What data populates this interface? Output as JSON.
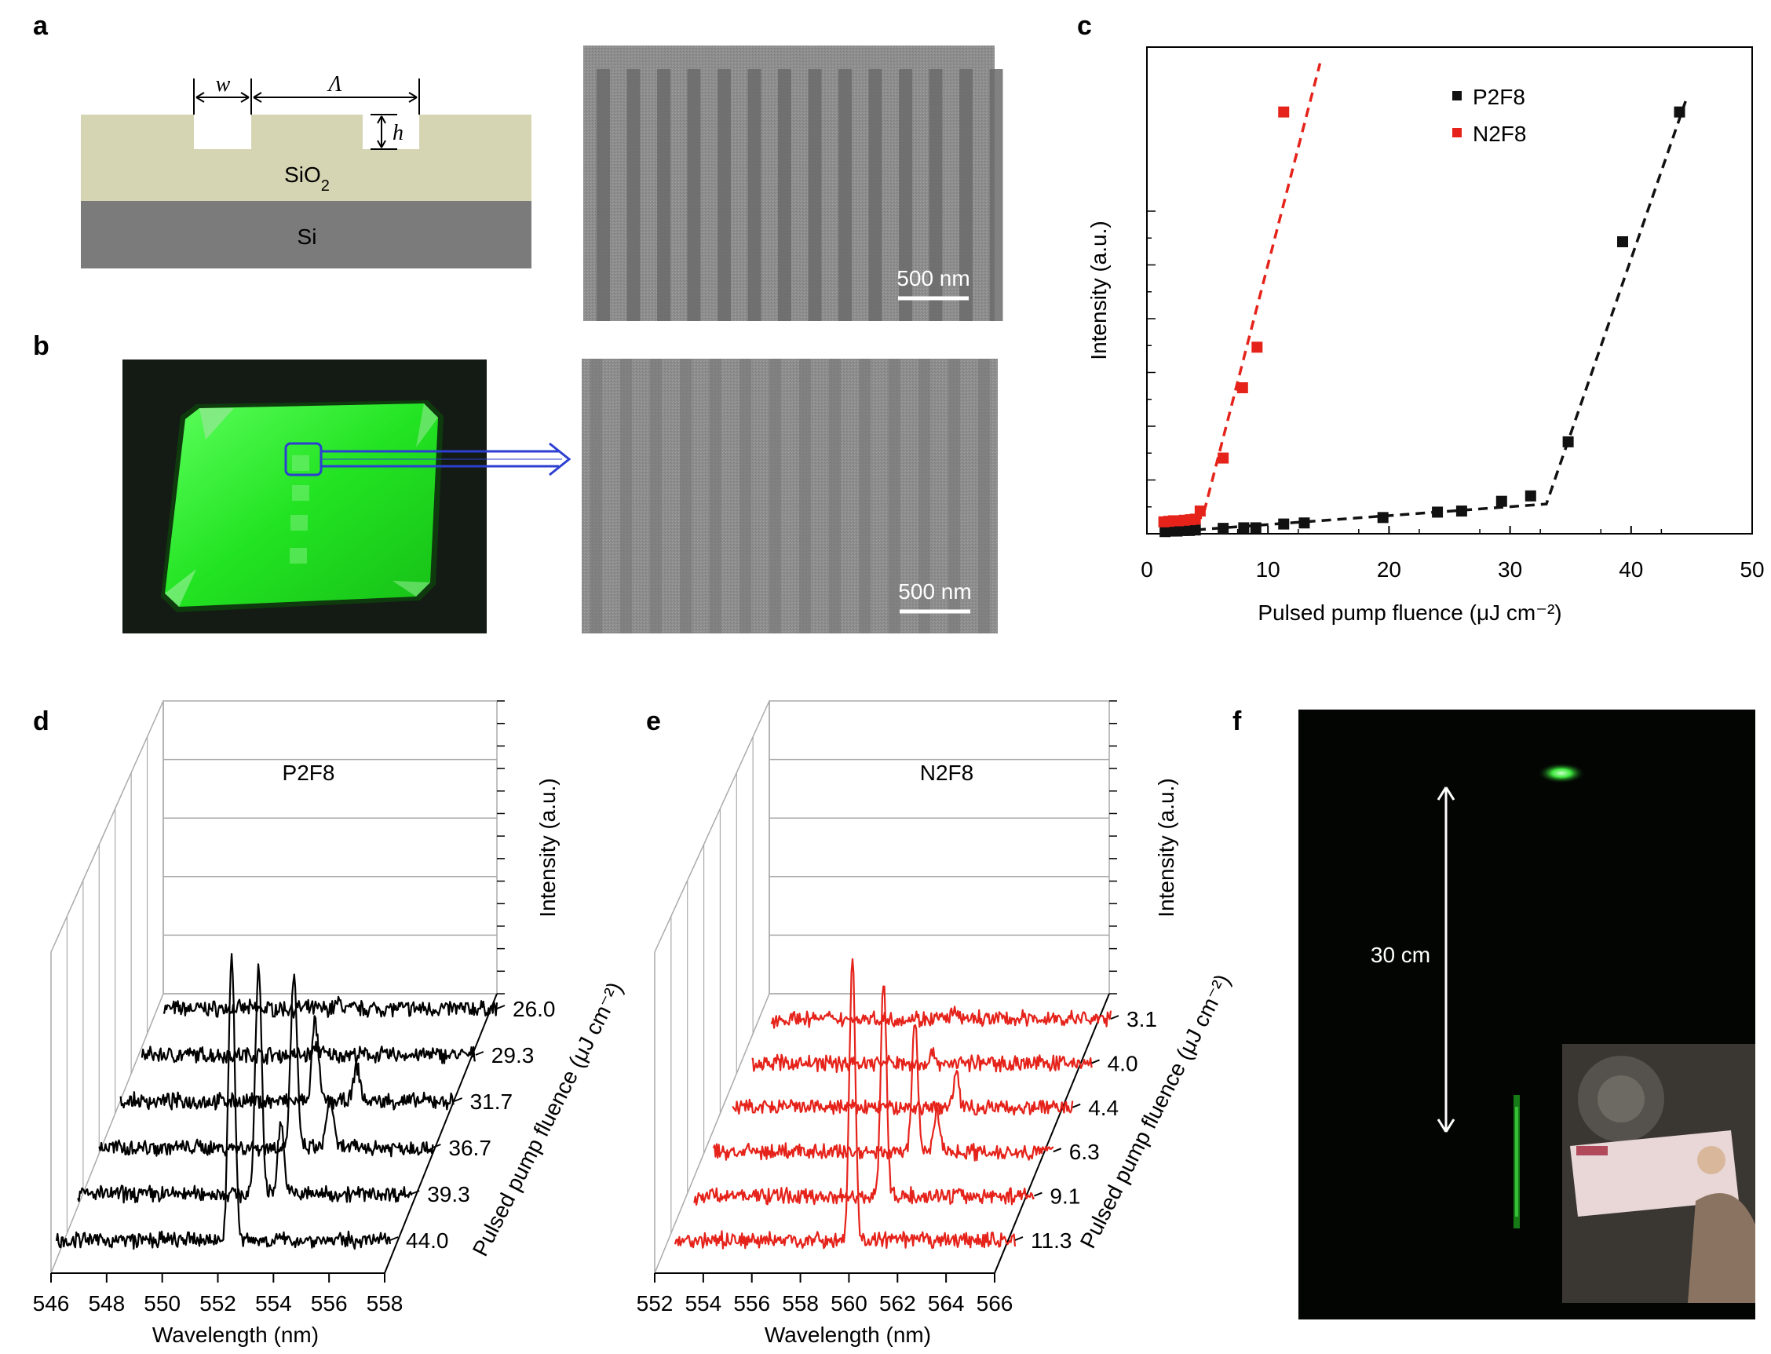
{
  "panels": {
    "a": {
      "label": "a",
      "schematic": {
        "w_label": "w",
        "lambda_label": "Λ",
        "h_label": "h",
        "sio2_label": "SiO",
        "sio2_sub": "2",
        "si_label": "Si",
        "colors": {
          "sio2": "#d6d5b3",
          "si": "#7b7b7b"
        }
      },
      "sem_scale": "500 nm"
    },
    "b": {
      "label": "b",
      "sem_scale": "500 nm",
      "photo_colors": {
        "film": "#1fe81f",
        "background": "#141b14",
        "arrow": "#2c3fd0"
      }
    },
    "c": {
      "label": "c",
      "chart_data": {
        "type": "scatter",
        "xlabel": "Pulsed pump fluence (μJ cm⁻²)",
        "ylabel": "Intensity (a.u.)",
        "xlim": [
          0,
          50
        ],
        "xticks": [
          0,
          10,
          20,
          30,
          40,
          50
        ],
        "yticks_labeled": false,
        "legend_position": "top-right",
        "series": [
          {
            "name": "P2F8",
            "color": "#111111",
            "x": [
              1.5,
              2.0,
              2.5,
              3.0,
              3.5,
              4.0,
              6.3,
              8.0,
              9.0,
              11.3,
              13.0,
              19.5,
              24.0,
              26.0,
              29.3,
              31.7,
              34.8,
              39.3,
              44.0
            ],
            "y": [
              0.4,
              0.5,
              0.5,
              0.6,
              0.6,
              0.7,
              1.0,
              1.1,
              1.1,
              1.8,
              2.0,
              3.0,
              4.0,
              4.2,
              6.0,
              7.0,
              17.0,
              54.0,
              78.0
            ],
            "fit": [
              [
                1.5,
                0.3
              ],
              [
                33.0,
                5.5
              ],
              [
                44.5,
                80.0
              ]
            ]
          },
          {
            "name": "N2F8",
            "color": "#e5231b",
            "x": [
              1.4,
              1.8,
              2.2,
              2.6,
              3.1,
              3.6,
              4.0,
              4.4,
              6.3,
              7.9,
              9.1,
              11.3
            ],
            "y": [
              2.2,
              2.3,
              2.4,
              2.4,
              2.5,
              2.6,
              2.7,
              4.2,
              14.0,
              27.0,
              34.5,
              78.0
            ],
            "fit": [
              [
                1.2,
                2.1
              ],
              [
                4.6,
                3.0
              ],
              [
                14.3,
                87.0
              ]
            ]
          }
        ],
        "ylim": [
          0,
          90
        ]
      }
    },
    "d": {
      "label": "d",
      "chart_data": {
        "type": "line",
        "title": "P2F8",
        "xlabel": "Wavelength (nm)",
        "ylabel": "Intensity (a.u.)",
        "zlabel": "Pulsed pump fluence (μJ cm⁻²)",
        "xlim": [
          546,
          558
        ],
        "xticks": [
          "546",
          "548",
          "550",
          "552",
          "554",
          "556",
          "558"
        ],
        "fluence_labels": [
          "26.0",
          "29.3",
          "31.7",
          "36.7",
          "39.3",
          "44.0"
        ],
        "color": "#000000",
        "series": [
          {
            "fluence": 26.0,
            "peaks": [
              [
                552.3,
                0.02
              ]
            ]
          },
          {
            "fluence": 29.3,
            "peaks": [
              [
                552.3,
                0.03
              ]
            ]
          },
          {
            "fluence": 31.7,
            "peaks": [
              [
                553.0,
                0.28
              ],
              [
                554.5,
                0.12
              ]
            ]
          },
          {
            "fluence": 36.7,
            "peaks": [
              [
                553.0,
                0.6
              ],
              [
                554.3,
                0.18
              ]
            ]
          },
          {
            "fluence": 39.3,
            "peaks": [
              [
                552.5,
                0.8
              ],
              [
                553.3,
                0.25
              ]
            ]
          },
          {
            "fluence": 44.0,
            "peaks": [
              [
                552.3,
                1.0
              ]
            ]
          }
        ]
      }
    },
    "e": {
      "label": "e",
      "chart_data": {
        "type": "line",
        "title": "N2F8",
        "xlabel": "Wavelength (nm)",
        "ylabel": "Intensity (a.u.)",
        "zlabel": "Pulsed pump fluence (μJ cm⁻²)",
        "xlim": [
          552,
          566
        ],
        "xticks": [
          "552",
          "554",
          "556",
          "558",
          "560",
          "562",
          "564",
          "566"
        ],
        "fluence_labels": [
          "3.1",
          "4.0",
          "4.4",
          "6.3",
          "9.1",
          "11.3"
        ],
        "color": "#e5231b",
        "series": [
          {
            "fluence": 3.1,
            "peaks": [
              [
                559.5,
                0.02
              ]
            ]
          },
          {
            "fluence": 4.0,
            "peaks": [
              [
                559.5,
                0.03
              ]
            ]
          },
          {
            "fluence": 4.4,
            "peaks": [
              [
                561.2,
                0.12
              ]
            ]
          },
          {
            "fluence": 6.3,
            "peaks": [
              [
                560.3,
                0.45
              ],
              [
                561.2,
                0.15
              ]
            ]
          },
          {
            "fluence": 9.1,
            "peaks": [
              [
                559.8,
                0.75
              ]
            ]
          },
          {
            "fluence": 11.3,
            "peaks": [
              [
                559.3,
                1.0
              ]
            ]
          }
        ]
      }
    },
    "f": {
      "label": "f",
      "distance": "30 cm",
      "colors": {
        "background": "#030503",
        "laser": "#2fe02f"
      }
    }
  }
}
